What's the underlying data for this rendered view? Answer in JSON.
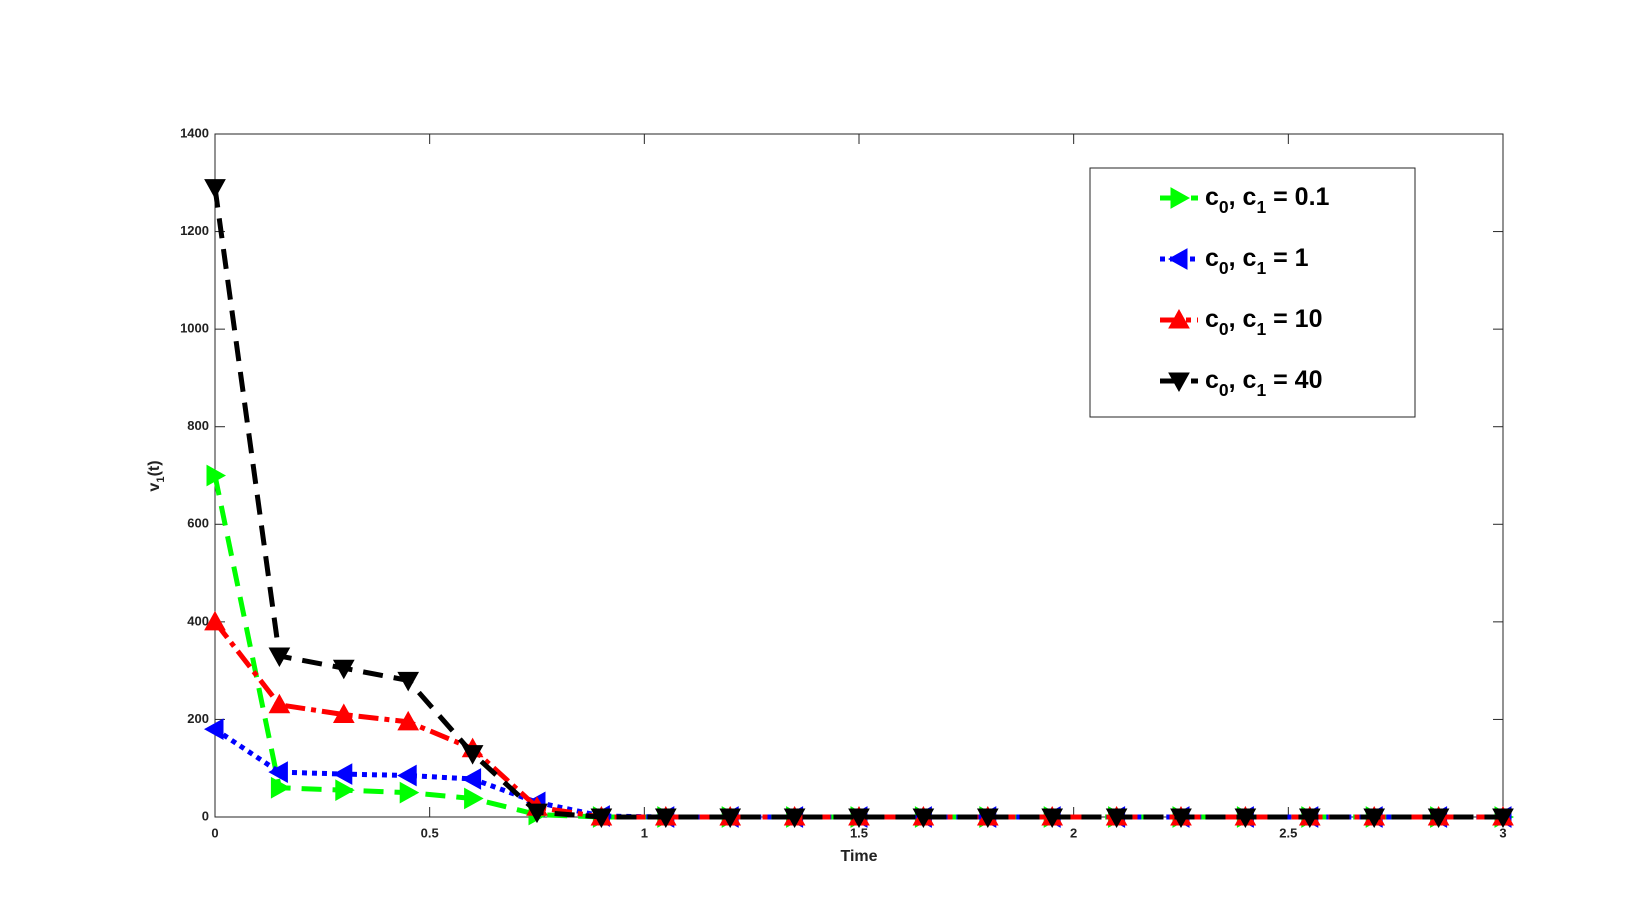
{
  "chart_data": {
    "type": "line",
    "x_label": "Time",
    "y_label": "v1(t)",
    "x": [
      0,
      0.15,
      0.3,
      0.45,
      0.6,
      0.75,
      0.9,
      1.05,
      1.2,
      1.35,
      1.5,
      1.65,
      1.8,
      1.95,
      2.1,
      2.25,
      2.4,
      2.55,
      2.7,
      2.85,
      3
    ],
    "series": [
      {
        "name": "c0, c1 = 0.1",
        "color": "#00ff00",
        "line_style": "dashed",
        "marker": "right-triangle",
        "values": [
          700,
          60,
          55,
          50,
          38,
          5,
          0,
          0,
          0,
          0,
          0,
          0,
          0,
          0,
          0,
          0,
          0,
          0,
          0,
          0,
          0
        ]
      },
      {
        "name": "c0, c1 = 1",
        "color": "#0000ff",
        "line_style": "dotted",
        "marker": "left-triangle",
        "values": [
          180,
          92,
          88,
          85,
          78,
          30,
          2,
          0,
          0,
          0,
          0,
          0,
          0,
          0,
          0,
          0,
          0,
          0,
          0,
          0,
          0
        ]
      },
      {
        "name": "c0, c1 = 10",
        "color": "#ff0000",
        "line_style": "dash-dot",
        "marker": "up-triangle",
        "values": [
          400,
          230,
          210,
          195,
          140,
          20,
          0,
          0,
          0,
          0,
          0,
          0,
          0,
          0,
          0,
          0,
          0,
          0,
          0,
          0,
          0
        ]
      },
      {
        "name": "c0, c1 = 40",
        "color": "#000000",
        "line_style": "dashed",
        "marker": "down-triangle",
        "values": [
          1290,
          330,
          305,
          280,
          130,
          10,
          0,
          0,
          0,
          0,
          0,
          0,
          0,
          0,
          0,
          0,
          0,
          0,
          0,
          0,
          0
        ]
      }
    ],
    "xlim": [
      0,
      3
    ],
    "xticks": [
      0,
      0.5,
      1,
      1.5,
      2,
      2.5,
      3
    ],
    "ylim": [
      0,
      1400
    ],
    "yticks": [
      0,
      200,
      400,
      600,
      800,
      1000,
      1200,
      1400
    ],
    "legend": "upper-right"
  }
}
